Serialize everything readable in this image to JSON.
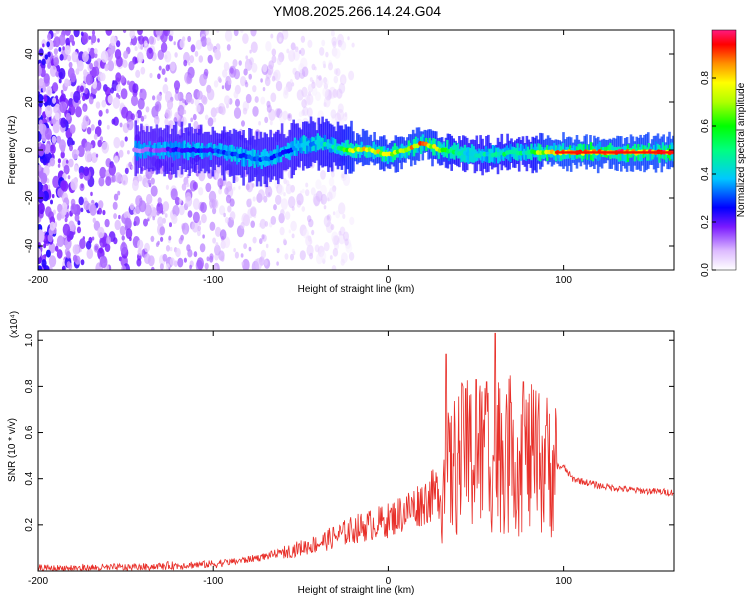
{
  "title": "YM08.2025.266.14.24.G04",
  "chart_data": [
    {
      "type": "heatmap",
      "xlabel": "Height of straight line (km)",
      "ylabel": "Frequency (Hz)",
      "xlim": [
        -200,
        163
      ],
      "ylim": [
        -50,
        50
      ],
      "xticks": [
        -200,
        -100,
        0,
        100
      ],
      "yticks": [
        -40,
        -20,
        0,
        20,
        40
      ],
      "colorbar": {
        "label": "Normalized spectral amplitude",
        "ticks": [
          "0.0",
          "0.2",
          "0.4",
          "0.6",
          "0.8"
        ],
        "tick_values": [
          0,
          0.2,
          0.4,
          0.6,
          0.8
        ],
        "range": [
          0,
          1
        ]
      },
      "ridge": {
        "x": [
          -145,
          -120,
          -100,
          -80,
          -70,
          -60,
          -50,
          -40,
          -30,
          -20,
          -10,
          0,
          10,
          20,
          30,
          40,
          50,
          60,
          70,
          80,
          90,
          100,
          163
        ],
        "y": [
          0,
          0,
          0,
          -3,
          -4,
          -1,
          2,
          3,
          1,
          0,
          0,
          -2,
          0,
          3,
          0,
          -1,
          -2,
          -2,
          -1,
          -1,
          -1,
          -1,
          -1
        ],
        "amplitude": [
          0.12,
          0.25,
          0.3,
          0.35,
          0.35,
          0.3,
          0.4,
          0.45,
          0.5,
          0.8,
          0.85,
          0.75,
          0.85,
          0.9,
          0.7,
          0.5,
          0.45,
          0.5,
          0.55,
          0.5,
          0.9,
          0.95,
          0.95
        ]
      },
      "noise_region_x": [
        -200,
        -60
      ]
    },
    {
      "type": "line",
      "xlabel": "Height of straight line (km)",
      "ylabel": "SNR (10 * v/v)",
      "y_multiplier": "(x10⁴)",
      "xlim": [
        -200,
        163
      ],
      "ylim": [
        0,
        1.04
      ],
      "xticks": [
        -200,
        -100,
        0,
        100
      ],
      "yticks": [
        "0.2",
        "0.4",
        "0.6",
        "0.8",
        "1.0"
      ],
      "ytick_values": [
        0.2,
        0.4,
        0.6,
        0.8,
        1.0
      ],
      "color": "#e8302a",
      "envelope": {
        "x": [
          -200,
          -150,
          -100,
          -80,
          -60,
          -40,
          -20,
          0,
          10,
          20,
          30,
          35,
          40,
          50,
          60,
          70,
          80,
          90,
          100,
          105,
          110,
          120,
          140,
          163
        ],
        "y": [
          0.01,
          0.015,
          0.03,
          0.05,
          0.08,
          0.12,
          0.18,
          0.22,
          0.26,
          0.3,
          0.35,
          0.42,
          0.48,
          0.5,
          0.52,
          0.5,
          0.48,
          0.46,
          0.45,
          0.4,
          0.39,
          0.37,
          0.35,
          0.34
        ]
      },
      "peaks": [
        {
          "x": 33,
          "y": 0.94
        },
        {
          "x": 44,
          "y": 0.79
        },
        {
          "x": 50,
          "y": 0.83
        },
        {
          "x": 56,
          "y": 0.82
        },
        {
          "x": 61,
          "y": 1.03
        },
        {
          "x": 70,
          "y": 0.73
        },
        {
          "x": 77,
          "y": 0.82
        },
        {
          "x": 90,
          "y": 0.63
        }
      ]
    }
  ]
}
